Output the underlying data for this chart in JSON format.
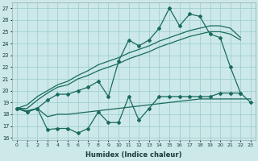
{
  "xlabel": "Humidex (Indice chaleur)",
  "background_color": "#cce8e8",
  "grid_color": "#99cccc",
  "line_color": "#1a6b5a",
  "xlim": [
    -0.5,
    23.5
  ],
  "ylim": [
    15.8,
    27.5
  ],
  "yticks": [
    16,
    17,
    18,
    19,
    20,
    21,
    22,
    23,
    24,
    25,
    26,
    27
  ],
  "xticks": [
    0,
    1,
    2,
    3,
    4,
    5,
    6,
    7,
    8,
    9,
    10,
    11,
    12,
    13,
    14,
    15,
    16,
    17,
    18,
    19,
    20,
    21,
    22,
    23
  ],
  "series": {
    "main": [
      18.5,
      18.2,
      18.5,
      19.2,
      19.7,
      19.7,
      20.0,
      20.3,
      20.8,
      19.5,
      22.5,
      24.3,
      23.8,
      24.3,
      25.3,
      27.0,
      25.5,
      26.5,
      26.3,
      24.8,
      24.5,
      22.0,
      19.8,
      null
    ],
    "trend1": [
      18.5,
      18.5,
      19.2,
      19.8,
      20.3,
      20.5,
      21.0,
      21.3,
      21.7,
      22.0,
      22.3,
      22.7,
      23.0,
      23.3,
      23.7,
      24.0,
      24.3,
      24.6,
      24.8,
      25.0,
      25.0,
      24.8,
      24.3,
      null
    ],
    "trend2": [
      18.5,
      18.8,
      19.5,
      20.0,
      20.5,
      20.8,
      21.3,
      21.7,
      22.2,
      22.5,
      22.8,
      23.2,
      23.5,
      23.8,
      24.2,
      24.5,
      24.8,
      25.1,
      25.3,
      25.5,
      25.5,
      25.3,
      24.5,
      null
    ],
    "base": [
      18.5,
      18.3,
      18.5,
      17.8,
      18.0,
      18.0,
      18.1,
      18.2,
      18.3,
      18.4,
      18.5,
      18.6,
      18.7,
      18.8,
      18.9,
      19.0,
      19.1,
      19.2,
      19.3,
      19.3,
      19.3,
      19.3,
      19.3,
      19.3
    ],
    "jagged": [
      18.5,
      18.2,
      18.5,
      16.7,
      16.8,
      16.8,
      16.4,
      16.8,
      18.2,
      17.3,
      17.3,
      19.5,
      17.5,
      18.5,
      19.5,
      19.5,
      19.5,
      19.5,
      19.5,
      19.5,
      19.8,
      19.8,
      19.8,
      19.0
    ]
  }
}
